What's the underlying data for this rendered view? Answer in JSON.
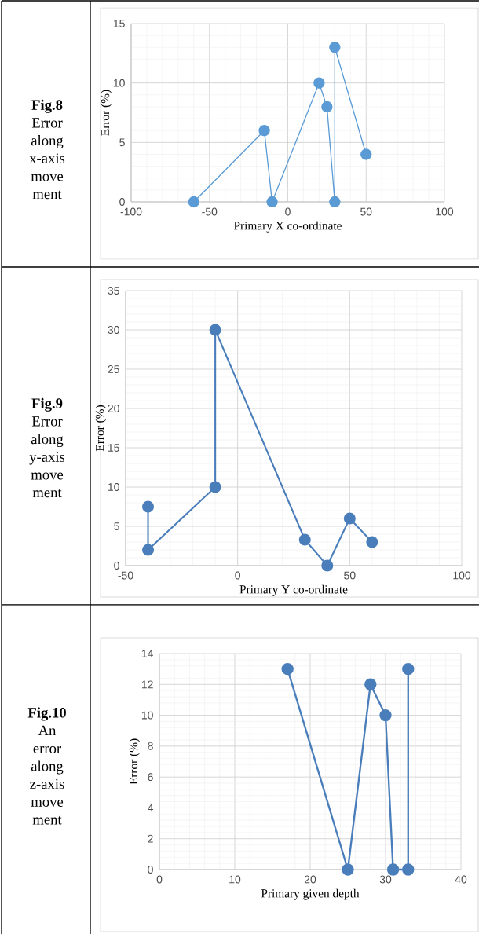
{
  "chart_data": [
    {
      "type": "line",
      "title": "Fig.8",
      "subtitle": "Error along x-axis move ment",
      "xlabel": "Primary X co-ordinate",
      "ylabel": "Error (%)",
      "x": [
        -60,
        -15,
        -10,
        20,
        25,
        30,
        30,
        50
      ],
      "values": [
        0,
        6,
        0,
        10,
        8,
        0,
        13,
        4
      ],
      "color": "#5b9bd5",
      "xlim": [
        -100,
        100
      ],
      "ylim": [
        0,
        15
      ],
      "xticks": [
        -100,
        -50,
        0,
        50,
        100
      ],
      "yticks": [
        0,
        5,
        10,
        15
      ],
      "grid": true,
      "marker": "circle"
    },
    {
      "type": "line",
      "title": "Fig.9",
      "subtitle": "Error along y-axis move ment",
      "xlabel": "Primary Y co-ordinate",
      "ylabel": "Error (%)",
      "x": [
        -40,
        -40,
        -10,
        -10,
        30,
        40,
        50,
        60
      ],
      "values": [
        7.5,
        2,
        10,
        30,
        3.3,
        0,
        6,
        3
      ],
      "color": "#4a7ebb",
      "xlim": [
        -50,
        100
      ],
      "ylim": [
        0,
        35
      ],
      "xticks": [
        -50,
        0,
        50,
        100
      ],
      "yticks": [
        0,
        5,
        10,
        15,
        20,
        25,
        30,
        35
      ],
      "grid": true,
      "marker": "circle"
    },
    {
      "type": "line",
      "title": "Fig.10",
      "subtitle": "An error along z-axis move ment",
      "xlabel": "Primary given depth",
      "ylabel": "Error (%)",
      "x": [
        17,
        25,
        28,
        30,
        31,
        33,
        33
      ],
      "values": [
        13,
        0,
        12,
        10,
        0,
        0,
        13
      ],
      "color": "#4a7ebb",
      "xlim": [
        0,
        40
      ],
      "ylim": [
        0,
        14
      ],
      "xticks": [
        0,
        10,
        20,
        30,
        40
      ],
      "yticks": [
        0,
        2,
        4,
        6,
        8,
        10,
        12,
        14
      ],
      "grid": true,
      "marker": "circle"
    }
  ]
}
